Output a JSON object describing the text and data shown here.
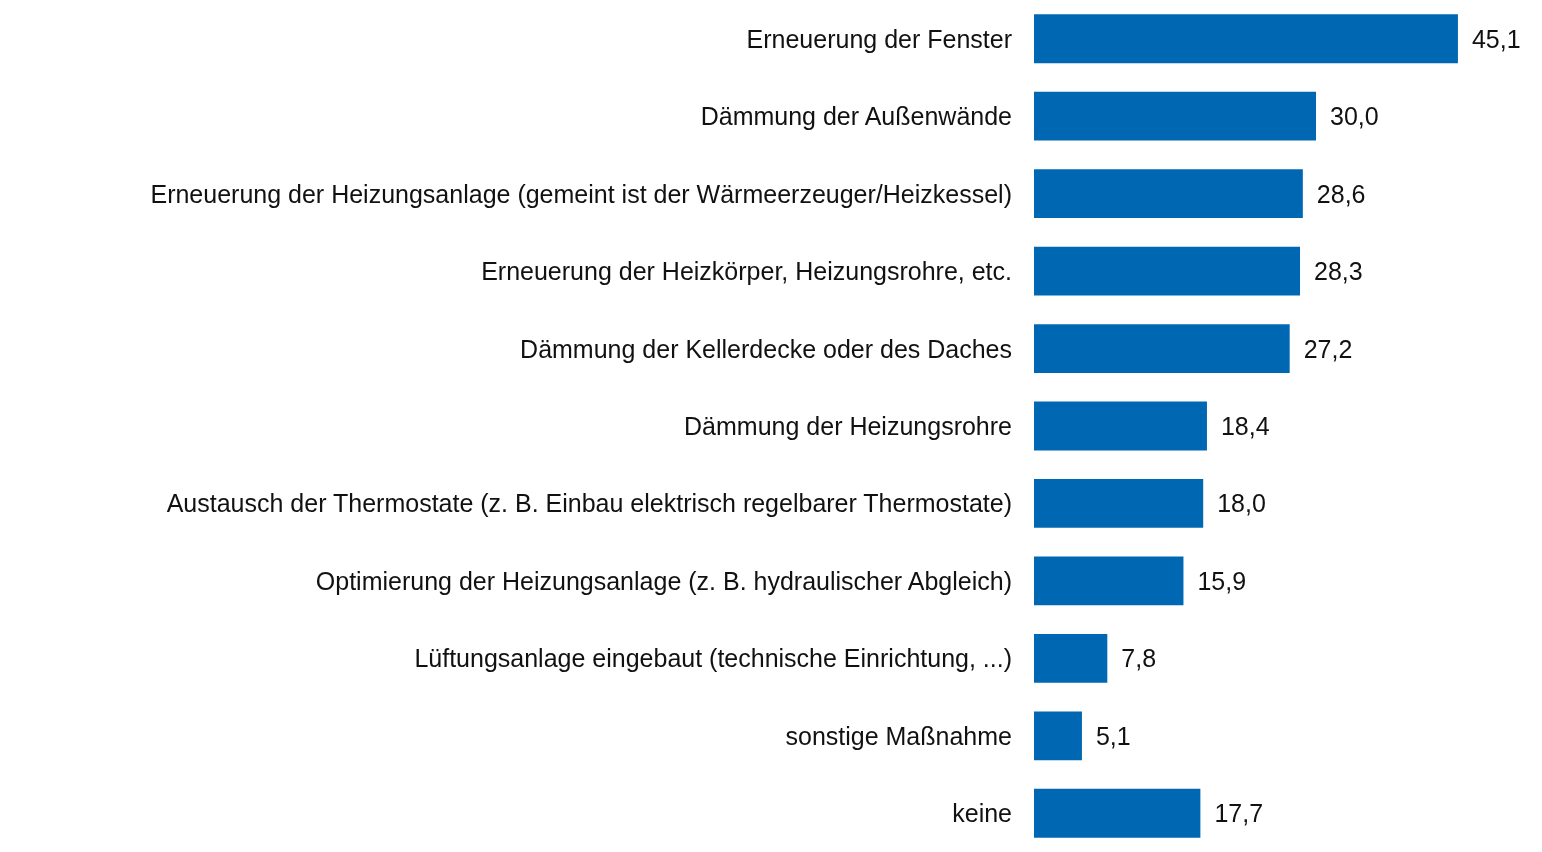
{
  "chart_data": {
    "type": "bar",
    "orientation": "horizontal",
    "categories": [
      "Erneuerung der Fenster",
      "Dämmung der Außenwände",
      "Erneuerung der Heizungsanlage (gemeint ist der Wärmeerzeuger/Heizkessel)",
      "Erneuerung der Heizkörper, Heizungsrohre, etc.",
      "Dämmung der Kellerdecke oder des Daches",
      "Dämmung der Heizungsrohre",
      "Austausch der Thermostate (z. B. Einbau elektrisch regelbarer Thermostate)",
      "Optimierung der Heizungsanlage (z. B. hydraulischer Abgleich)",
      "Lüftungsanlage eingebaut (technische Einrichtung, ...)",
      "sonstige Maßnahme",
      "keine"
    ],
    "values": [
      45.1,
      30.0,
      28.6,
      28.3,
      27.2,
      18.4,
      18.0,
      15.9,
      7.8,
      5.1,
      17.7
    ],
    "value_labels": [
      "45,1",
      "30,0",
      "28,6",
      "28,3",
      "27,2",
      "18,4",
      "18,0",
      "15,9",
      "7,8",
      "5,1",
      "17,7"
    ],
    "color": "#0068b3"
  }
}
